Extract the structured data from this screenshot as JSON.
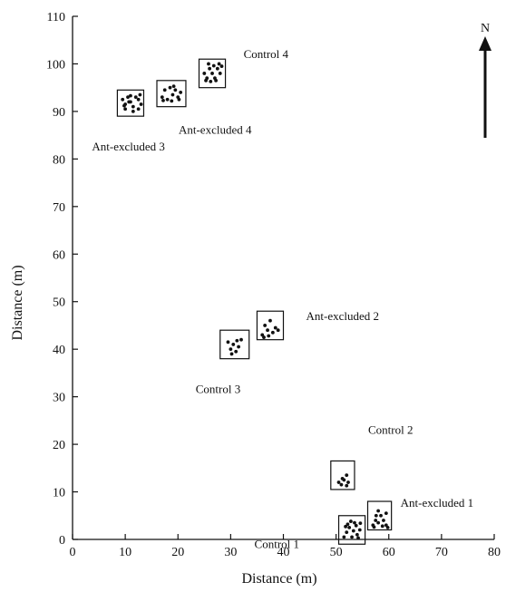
{
  "chart_data": {
    "type": "scatter",
    "title": "",
    "xlabel": "Distance (m)",
    "ylabel": "Distance (m)",
    "xlim": [
      0,
      80
    ],
    "ylim": [
      0,
      110
    ],
    "xticks": [
      0,
      10,
      20,
      30,
      40,
      50,
      60,
      70,
      80
    ],
    "yticks": [
      0,
      10,
      20,
      30,
      40,
      50,
      60,
      70,
      80,
      90,
      100,
      110
    ],
    "grid": false,
    "north_label": "N",
    "plots": [
      {
        "name": "Ant-excluded 3",
        "x_range": [
          8.5,
          13.5
        ],
        "y_range": [
          89,
          94.5
        ],
        "points": [
          [
            9.5,
            92.5
          ],
          [
            10,
            91.5
          ],
          [
            10.5,
            93
          ],
          [
            11,
            92
          ],
          [
            11.5,
            91
          ],
          [
            12,
            93
          ],
          [
            12.5,
            92.5
          ],
          [
            13,
            91.5
          ],
          [
            10,
            90.5
          ],
          [
            11.5,
            90
          ],
          [
            12.5,
            90.5
          ],
          [
            9.8,
            91.2
          ],
          [
            11,
            93.3
          ],
          [
            12.8,
            93.5
          ],
          [
            10.7,
            92
          ]
        ]
      },
      {
        "name": "Ant-excluded 4",
        "x_range": [
          16,
          21.5
        ],
        "y_range": [
          91,
          96.5
        ],
        "points": [
          [
            17,
            93
          ],
          [
            17.5,
            94.5
          ],
          [
            18,
            92.5
          ],
          [
            18.5,
            95
          ],
          [
            19,
            93.5
          ],
          [
            19.5,
            94.5
          ],
          [
            20,
            93
          ],
          [
            20.5,
            94
          ],
          [
            17.2,
            92.3
          ],
          [
            18.8,
            92.2
          ],
          [
            20.2,
            92.5
          ],
          [
            19.2,
            95.3
          ]
        ]
      },
      {
        "name": "Control 4",
        "x_range": [
          24,
          29
        ],
        "y_range": [
          95,
          101
        ],
        "points": [
          [
            25,
            98
          ],
          [
            25.5,
            97
          ],
          [
            26,
            99
          ],
          [
            26.5,
            98
          ],
          [
            27,
            97
          ],
          [
            27.5,
            99
          ],
          [
            28,
            98
          ],
          [
            28.3,
            99.5
          ],
          [
            25.3,
            96.5
          ],
          [
            26.2,
            96.3
          ],
          [
            27.2,
            96.5
          ],
          [
            25.8,
            100
          ],
          [
            27.8,
            100
          ],
          [
            26.8,
            99.6
          ]
        ]
      },
      {
        "name": "Control 3",
        "x_range": [
          28,
          33.5
        ],
        "y_range": [
          38,
          44
        ],
        "points": [
          [
            29.5,
            41.5
          ],
          [
            30,
            40
          ],
          [
            30.5,
            41
          ],
          [
            31,
            39.5
          ],
          [
            31.5,
            40.5
          ],
          [
            32,
            42
          ],
          [
            30.2,
            39
          ],
          [
            31.2,
            41.8
          ]
        ]
      },
      {
        "name": "Ant-excluded 2",
        "x_range": [
          35,
          40
        ],
        "y_range": [
          42,
          48
        ],
        "points": [
          [
            36,
            43
          ],
          [
            36.5,
            45
          ],
          [
            37,
            44
          ],
          [
            37.5,
            46
          ],
          [
            38,
            43.5
          ],
          [
            38.5,
            44.5
          ],
          [
            36.3,
            42.5
          ],
          [
            37.2,
            42.8
          ],
          [
            39,
            44
          ]
        ]
      },
      {
        "name": "Control 2",
        "x_range": [
          49,
          53.5
        ],
        "y_range": [
          10.5,
          16.5
        ],
        "points": [
          [
            50.5,
            12
          ],
          [
            51,
            11.5
          ],
          [
            51.5,
            12.5
          ],
          [
            52,
            13.5
          ],
          [
            52,
            11.3
          ],
          [
            51.2,
            12.8
          ],
          [
            52.3,
            12
          ]
        ]
      },
      {
        "name": "Control 1",
        "x_range": [
          50.5,
          55.5
        ],
        "y_range": [
          -1,
          5
        ],
        "points": [
          [
            51.5,
            0.5
          ],
          [
            52,
            1.5
          ],
          [
            52.5,
            2.5
          ],
          [
            53,
            0.5
          ],
          [
            53.5,
            3.5
          ],
          [
            54,
            1
          ],
          [
            54.5,
            2
          ],
          [
            52.2,
            3.2
          ],
          [
            53.3,
            1.8
          ],
          [
            51.8,
            2.7
          ],
          [
            54.2,
            0.3
          ],
          [
            52.8,
            3.8
          ],
          [
            53.8,
            2.9
          ],
          [
            54.6,
            3.4
          ]
        ]
      },
      {
        "name": "Ant-excluded 1",
        "x_range": [
          56,
          60.5
        ],
        "y_range": [
          2,
          8
        ],
        "points": [
          [
            57,
            3
          ],
          [
            57.5,
            4
          ],
          [
            58,
            3.5
          ],
          [
            58.5,
            5
          ],
          [
            59,
            4
          ],
          [
            59.5,
            3
          ],
          [
            58,
            6
          ],
          [
            59.5,
            5.5
          ],
          [
            57.2,
            2.6
          ],
          [
            58.8,
            2.8
          ],
          [
            59.8,
            2.5
          ],
          [
            57.6,
            5
          ]
        ]
      }
    ]
  }
}
